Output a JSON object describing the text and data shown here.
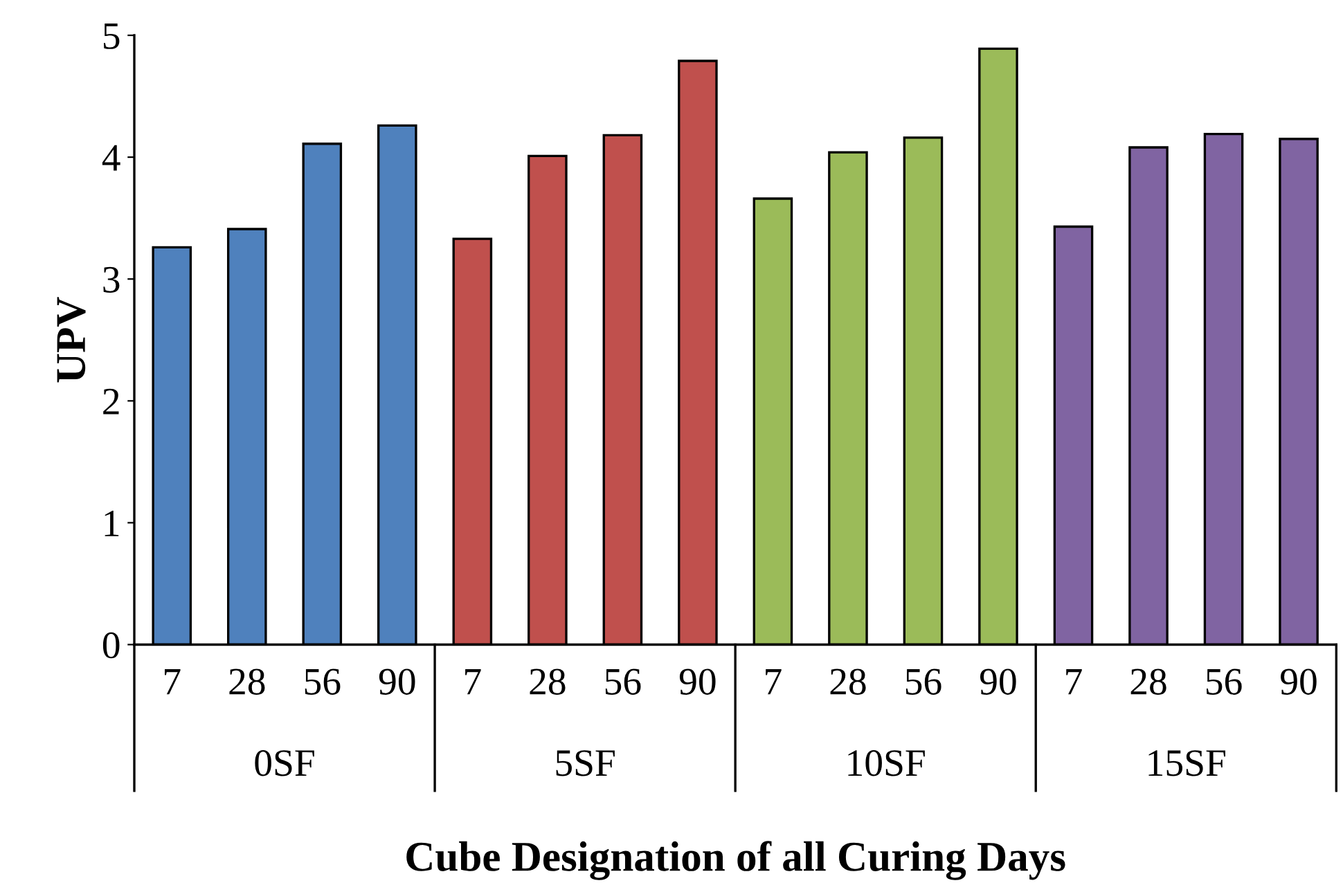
{
  "chart_data": {
    "type": "bar",
    "xlabel": "Cube Designation of all Curing Days",
    "ylabel": "UPV",
    "categories": [
      "7",
      "28",
      "56",
      "90",
      "7",
      "28",
      "56",
      "90",
      "7",
      "28",
      "56",
      "90",
      "7",
      "28",
      "56",
      "90"
    ],
    "values": [
      3.26,
      3.41,
      4.11,
      4.26,
      3.33,
      4.01,
      4.18,
      4.79,
      3.66,
      4.04,
      4.16,
      4.89,
      3.43,
      4.08,
      4.19,
      4.15
    ],
    "colors": [
      "#4f81bd",
      "#4f81bd",
      "#4f81bd",
      "#4f81bd",
      "#c0504d",
      "#c0504d",
      "#c0504d",
      "#c0504d",
      "#9bbb59",
      "#9bbb59",
      "#9bbb59",
      "#9bbb59",
      "#8064a2",
      "#8064a2",
      "#8064a2",
      "#8064a2"
    ],
    "annotations": [
      "0SF",
      "5SF",
      "10SF",
      "15SF"
    ],
    "ylim": [
      0,
      5
    ],
    "yticks": [
      0,
      1,
      2,
      3,
      4,
      5
    ],
    "grid": false,
    "legend": false
  }
}
